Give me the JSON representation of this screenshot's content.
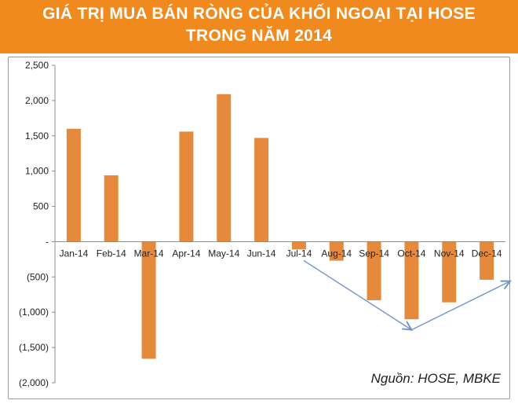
{
  "title_line1": "GIÁ TRỊ MUA BÁN RÒNG CỦA KHỐI NGOẠI TẠI HOSE",
  "title_line2": "TRONG NĂM 2014",
  "source": "Nguồn: HOSE, MBKE",
  "colors": {
    "header": "#f08a1e",
    "bar": "#e58a3c",
    "arrow": "#6f95c9",
    "axis": "#8c8c8c"
  },
  "chart_data": {
    "type": "bar",
    "title": "GIÁ TRỊ MUA BÁN RÒNG CỦA KHỐI NGOẠI TẠI HOSE TRONG NĂM 2014",
    "categories": [
      "Jan-14",
      "Feb-14",
      "Mar-14",
      "Apr-14",
      "May-14",
      "Jun-14",
      "Jul-14",
      "Aug-14",
      "Sep-14",
      "Oct-14",
      "Nov-14",
      "Dec-14"
    ],
    "values": [
      1600,
      940,
      -1660,
      1560,
      2090,
      1470,
      -110,
      -270,
      -830,
      -1100,
      -860,
      -540
    ],
    "ylim": [
      -2000,
      2500
    ],
    "yticks": [
      2500,
      2000,
      1500,
      1000,
      500,
      0,
      -500,
      -1000,
      -1500,
      -2000
    ],
    "ytick_labels": [
      "2,500",
      "2,000",
      "1,500",
      "1,000",
      "500",
      "-",
      "(500)",
      "(1,000)",
      "(1,500)",
      "(2,000)"
    ],
    "grid": false,
    "legend": "none",
    "annotation": "arrows from Jul-14 down to Oct-14 and up to Dec-14"
  }
}
